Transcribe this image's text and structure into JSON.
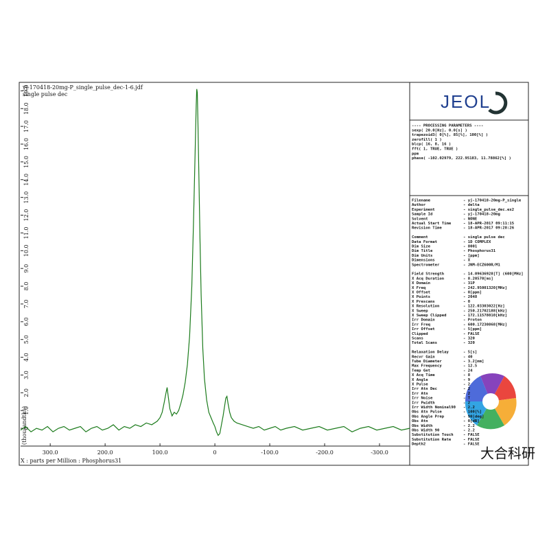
{
  "chart_data": {
    "type": "line",
    "title": "yj-170418-20mg-P_single_pulse_dec-1-6.jdf",
    "subtitle": "single pulse dec",
    "x_label": "X : parts per Million : Phosphorus31",
    "y_label": "(thousandths)",
    "xlim": [
      354,
      -355
    ],
    "ylim": [
      -1,
      19.4
    ],
    "xticks": [
      {
        "value": 300,
        "label": "300.0"
      },
      {
        "value": 200,
        "label": "200.0"
      },
      {
        "value": 100,
        "label": "100.0"
      },
      0,
      {
        "value": -100,
        "label": "-100.0"
      },
      {
        "value": -200,
        "label": "-200.0"
      },
      {
        "value": -300,
        "label": "-300.0"
      }
    ],
    "yticks": [
      0,
      {
        "value": 1,
        "label": "1.0"
      },
      {
        "value": 2,
        "label": "2.0"
      },
      {
        "value": 3,
        "label": "3.0"
      },
      {
        "value": 4,
        "label": "4.0"
      },
      {
        "value": 5,
        "label": "5.0"
      },
      {
        "value": 6,
        "label": "6.0"
      },
      {
        "value": 7,
        "label": "7.0"
      },
      {
        "value": 8,
        "label": "8.0"
      },
      {
        "value": 9,
        "label": "9.0"
      },
      {
        "value": 10,
        "label": "10.0"
      },
      {
        "value": 11,
        "label": "11.0"
      },
      {
        "value": 12,
        "label": "12.0"
      },
      {
        "value": 13,
        "label": "13.0"
      },
      {
        "value": 14,
        "label": "14.0"
      },
      {
        "value": 15,
        "label": "15.0"
      },
      {
        "value": 16,
        "label": "16.0"
      },
      {
        "value": 17,
        "label": "17.0"
      },
      {
        "value": 18,
        "label": "18.0"
      },
      {
        "value": 19,
        "label": "19.0"
      }
    ],
    "x": [
      354,
      345,
      335,
      325,
      315,
      305,
      295,
      285,
      275,
      265,
      255,
      245,
      235,
      225,
      215,
      205,
      195,
      185,
      175,
      165,
      155,
      145,
      135,
      125,
      115,
      105,
      100,
      96,
      92,
      89,
      87,
      85,
      82,
      78,
      74,
      70,
      66,
      62,
      58,
      54,
      50,
      46,
      42,
      39,
      36,
      34,
      33,
      32,
      31,
      29,
      27,
      25,
      22,
      19,
      15,
      11,
      7,
      3,
      0,
      -3,
      -6,
      -9,
      -12,
      -15,
      -18,
      -20,
      -22,
      -24,
      -27,
      -30,
      -35,
      -40,
      -50,
      -60,
      -70,
      -80,
      -90,
      -100,
      -110,
      -120,
      -130,
      -145,
      -160,
      -175,
      -190,
      -205,
      -220,
      -235,
      -250,
      -265,
      -280,
      -295,
      -310,
      -325,
      -340,
      -355
    ],
    "series": [
      {
        "color": "#1a7a1a",
        "values": [
          -0.1,
          0.1,
          -0.2,
          0.0,
          -0.1,
          0.1,
          -0.2,
          0.0,
          0.1,
          -0.1,
          0.0,
          0.1,
          -0.2,
          0.0,
          0.1,
          -0.1,
          0.0,
          0.2,
          -0.1,
          0.1,
          0.0,
          0.2,
          0.1,
          0.3,
          0.2,
          0.4,
          0.6,
          0.9,
          1.5,
          2.0,
          2.3,
          1.8,
          1.1,
          0.7,
          0.9,
          0.8,
          1.0,
          1.4,
          1.9,
          2.6,
          3.6,
          5.2,
          8.0,
          11.5,
          15.5,
          18.2,
          19.1,
          18.9,
          17.5,
          14.0,
          10.5,
          7.5,
          4.5,
          2.8,
          1.6,
          0.9,
          0.6,
          0.3,
          0.1,
          -0.2,
          -0.4,
          -0.3,
          0.2,
          0.7,
          1.3,
          1.7,
          1.8,
          1.4,
          0.9,
          0.6,
          0.4,
          0.3,
          0.2,
          0.1,
          0.0,
          0.1,
          -0.1,
          0.0,
          0.1,
          -0.1,
          0.0,
          0.1,
          -0.1,
          0.0,
          0.1,
          -0.1,
          0.0,
          0.1,
          -0.2,
          0.0,
          0.1,
          -0.1,
          0.0,
          0.1,
          -0.1,
          0.0
        ]
      }
    ]
  },
  "panel": {
    "logo": "JEOL",
    "processing": [
      "---- PROCESSING PARAMETERS ----",
      "sexp( 20.0[Hz], 0.0[s] )",
      "trapezoid3( 0[%], 85[%], 100[%] )",
      "zerofill( 1 )",
      "blcp( 16, 8, 16 )",
      "fft( 1, TRUE, TRUE )",
      "ppm",
      "phase( -102.02979, 222.95183, 11.78862[%] )"
    ],
    "params": [
      [
        [
          "Filename",
          "- yj-170418-20mg-P_single"
        ],
        [
          "Author",
          "- delta"
        ],
        [
          "Experiment",
          "- single_pulse_dec.ex2"
        ],
        [
          "Sample Id",
          "- yj-170418-20mg"
        ],
        [
          "Solvent",
          "- NONE"
        ],
        [
          "Actual Start Time",
          "- 18-APR-2017 09:11:15"
        ],
        [
          "Revision Time",
          "- 18-APR-2017 09:28:26"
        ]
      ],
      [
        [
          "Comment",
          "- single pulse dec"
        ],
        [
          "Data Format",
          "- 1D COMPLEX"
        ],
        [
          "Dim Size",
          "- 8001"
        ],
        [
          "Dim Title",
          "- Phosphorus31"
        ],
        [
          "Dim Units",
          "- [ppm]"
        ],
        [
          "Dimensions",
          "- X"
        ],
        [
          "Spectrometer",
          "- JNM-ECZ600R/M1"
        ]
      ],
      [
        [
          "Field Strength",
          "- 14.09636928[T] (600[MHz]"
        ],
        [
          "X Acq Duration",
          "- 8.20570[ms]"
        ],
        [
          "X Domain",
          "- 31P"
        ],
        [
          "X Freq",
          "- 242.95001320[MHz]"
        ],
        [
          "X Offset",
          "- 0[ppm]"
        ],
        [
          "X Points",
          "- 2048"
        ],
        [
          "X Prescans",
          "- 0"
        ],
        [
          "X Resolution",
          "- 122.03303022[Hz]"
        ],
        [
          "X Sweep",
          "- 250.21702188[kHz]"
        ],
        [
          "X Sweep Clipped",
          "- 172.11578010[kHz]"
        ],
        [
          "Irr Domain",
          "- Proton"
        ],
        [
          "Irr Freq",
          "- 600.17230868[MHz]"
        ],
        [
          "Irr Offset",
          "- 5[ppm]"
        ],
        [
          "Clipped",
          "- FALSE"
        ],
        [
          "Scans",
          "- 320"
        ],
        [
          "Total Scans",
          "- 320"
        ]
      ],
      [
        [
          "Relaxation Delay",
          "- 5[s]"
        ],
        [
          "Recvr Gain",
          "- 40"
        ],
        [
          "Tube Diameter",
          "- 3.2[mm]"
        ],
        [
          "Max Frequency",
          "- 12.5"
        ],
        [
          "Temp Get",
          "- 24"
        ],
        [
          "X Acq Time",
          "- 8"
        ],
        [
          "X Angle",
          "- 9"
        ],
        [
          "X Pulse",
          "- 2"
        ],
        [
          "Irr Atn Dec",
          "- 2"
        ],
        [
          "Irr Atn",
          "- 2"
        ],
        [
          "Irr Noise",
          "- T"
        ],
        [
          "Irr Pwidth",
          "- 2"
        ],
        [
          "Irr Width Nominal90",
          "- 2.2"
        ],
        [
          "Obs Atn Pulse",
          "- 100[%]"
        ],
        [
          "Obs Angle Prep",
          "- 90[deg]"
        ],
        [
          "Obs Atn",
          "- 0[dB]"
        ],
        [
          "Obs Width",
          "- 2.2"
        ],
        [
          "Obs Width 90",
          "- 2.2"
        ],
        [
          "Substitution Touch",
          "- FALSE"
        ],
        [
          "Substitution Rate",
          "- FALSE"
        ],
        [
          "Depth2",
          "- FALSE"
        ]
      ]
    ]
  },
  "watermark": "大合科研"
}
